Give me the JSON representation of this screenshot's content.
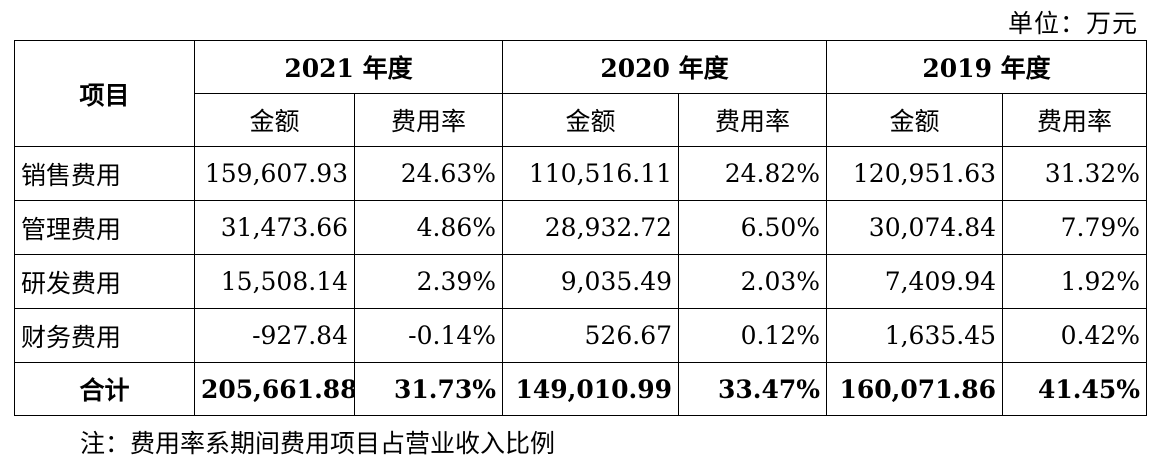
{
  "unit_label": "单位：万元",
  "header": {
    "item_label": "项目",
    "years": [
      "2021 年度",
      "2020 年度",
      "2019 年度"
    ],
    "amount_label": "金额",
    "rate_label": "费用率"
  },
  "rows": [
    {
      "label": "销售费用",
      "cells": [
        "159,607.93",
        "24.63%",
        "110,516.11",
        "24.82%",
        "120,951.63",
        "31.32%"
      ]
    },
    {
      "label": "管理费用",
      "cells": [
        "31,473.66",
        "4.86%",
        "28,932.72",
        "6.50%",
        "30,074.84",
        "7.79%"
      ]
    },
    {
      "label": "研发费用",
      "cells": [
        "15,508.14",
        "2.39%",
        "9,035.49",
        "2.03%",
        "7,409.94",
        "1.92%"
      ]
    },
    {
      "label": "财务费用",
      "cells": [
        "-927.84",
        "-0.14%",
        "526.67",
        "0.12%",
        "1,635.45",
        "0.42%"
      ]
    }
  ],
  "total": {
    "label": "合计",
    "cells": [
      "205,661.88",
      "31.73%",
      "149,010.99",
      "33.47%",
      "160,071.86",
      "41.45%"
    ]
  },
  "note": "注：费用率系期间费用项目占营业收入比例"
}
